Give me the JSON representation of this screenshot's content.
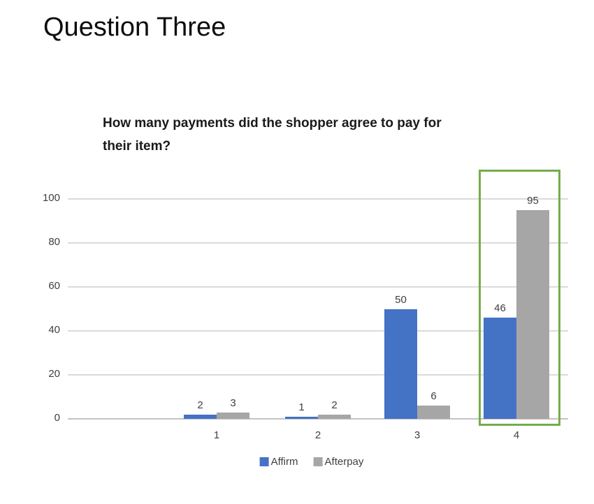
{
  "page": {
    "title": "Question Three"
  },
  "chart": {
    "title_lines": [
      "How many payments did the shopper agree to pay for",
      "their item?"
    ]
  },
  "chart_data": {
    "type": "bar",
    "title": "How many payments did the shopper agree to pay for their item?",
    "xlabel": "",
    "ylabel": "",
    "categories": [
      "1",
      "2",
      "3",
      "4"
    ],
    "series": [
      {
        "name": "Affirm",
        "color": "#4472c4",
        "values": [
          2,
          1,
          50,
          46
        ]
      },
      {
        "name": "Afterpay",
        "color": "#a6a6a6",
        "values": [
          3,
          2,
          6,
          95
        ]
      }
    ],
    "y_ticks": [
      0,
      20,
      40,
      60,
      80,
      100
    ],
    "ylim": [
      0,
      105
    ],
    "grid": true,
    "data_labels": true,
    "legend_position": "bottom",
    "annotations": [
      {
        "type": "highlight-box",
        "category": "4",
        "color": "#74ad4c",
        "note": "green rectangle outlining the category 4 bar group"
      }
    ]
  },
  "colors": {
    "affirm_blue": "#4472c4",
    "afterpay_gray": "#a6a6a6",
    "highlight_green": "#74ad4c",
    "gridline": "#dadada",
    "axis_text": "#3f3f3f"
  }
}
